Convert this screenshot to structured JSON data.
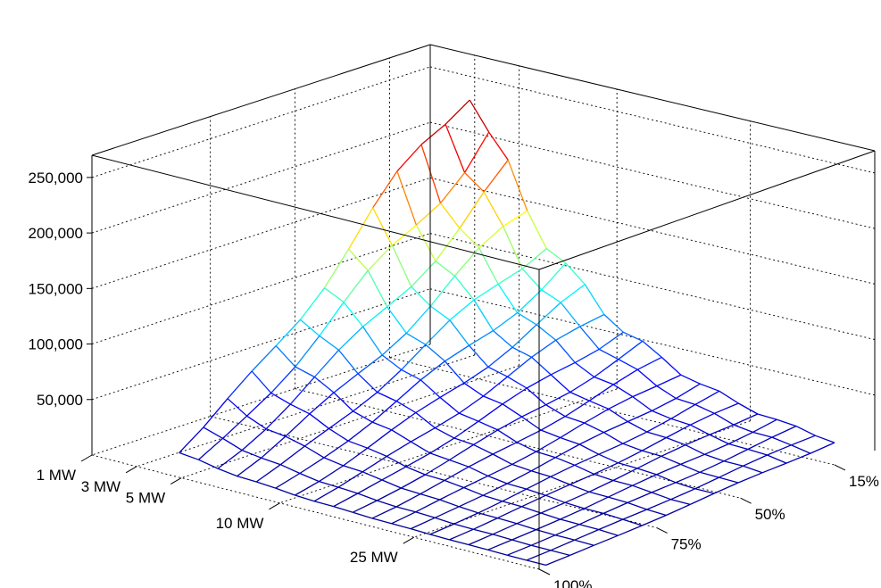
{
  "chart_data": {
    "type": "surface",
    "title": "",
    "xlabel": "",
    "ylabel": "",
    "zlabel": "",
    "x_ticks": [
      "1 MW",
      "3 MW",
      "5 MW",
      "10 MW",
      "25 MW"
    ],
    "y_ticks": [
      "15%",
      "50%",
      "75%",
      "100%"
    ],
    "z_ticks": [
      "50,000",
      "100,000",
      "150,000",
      "200,000",
      "250,000"
    ],
    "z_range": [
      0,
      270000
    ],
    "grid": true,
    "colormap": [
      "#00008f",
      "#0000ff",
      "#00ffff",
      "#ffff00",
      "#ff0000",
      "#800000"
    ],
    "surface": {
      "x_steps": 20,
      "y_steps": 13,
      "x_start": "1 MW",
      "x_end": "25 MW",
      "y_start": "100%",
      "y_end": "15%",
      "z_max": 265000,
      "z_max_at": {
        "x": "1 MW",
        "y": "15%"
      },
      "z_min": 0,
      "z_min_at": {
        "x": "25 MW",
        "y": "100%"
      }
    }
  }
}
